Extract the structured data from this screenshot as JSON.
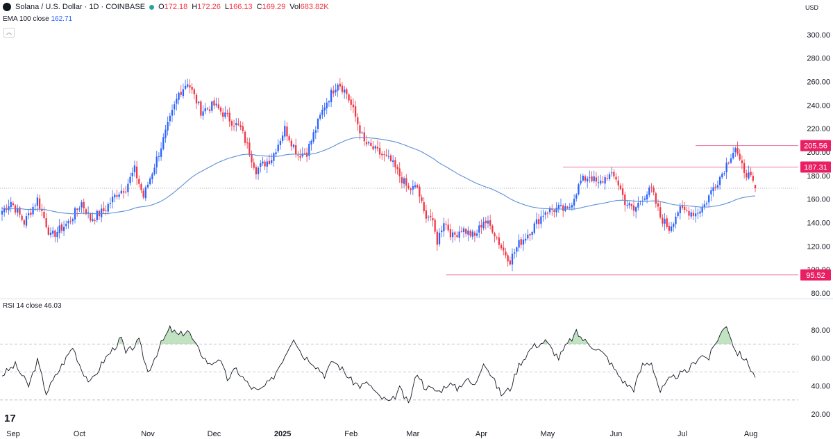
{
  "header": {
    "symbol": "Solana / U.S. Dollar · 1D · COINBASE",
    "open_label": "O",
    "open": "172.18",
    "high_label": "H",
    "high": "172.26",
    "low_label": "L",
    "low": "166.13",
    "close_label": "C",
    "close": "169.29",
    "volume_label": "Vol",
    "volume": "683.82K",
    "ema_label": "EMA 100 close",
    "ema_value": "162.71",
    "rsi_label": "RSI 14 close",
    "rsi_value": "46.03",
    "currency": "USD",
    "brand": "17"
  },
  "colors": {
    "up": "#2962ff",
    "down": "#f23645",
    "ema": "#5b8fd6",
    "level_line": "#e8739a",
    "level_badge": "#e91e63",
    "rsi": "#131722"
  },
  "chart_data": [
    {
      "type": "candlestick",
      "title": "Solana / U.S. Dollar · 1D · COINBASE",
      "ylim": [
        80,
        310
      ],
      "yticks": [
        80,
        100,
        120,
        140,
        160,
        180,
        200,
        220,
        240,
        260,
        280,
        300
      ],
      "ytick_labels": [
        "80.00",
        "100.00",
        "120.00",
        "140.00",
        "160.00",
        "180.00",
        "200.00",
        "220.00",
        "240.00",
        "260.00",
        "280.00",
        "300.00"
      ],
      "x_months": [
        "Sep",
        "Oct",
        "Nov",
        "Dec",
        "2025",
        "Feb",
        "Mar",
        "Apr",
        "May",
        "Jun",
        "Jul",
        "Aug"
      ],
      "x_month_day_index": [
        5,
        35,
        66,
        96,
        127,
        158,
        186,
        217,
        247,
        278,
        308,
        339
      ],
      "last_candle": {
        "open": 172.18,
        "high": 172.26,
        "low": 166.13,
        "close": 169.29
      },
      "close_keypoints": [
        [
          0,
          150
        ],
        [
          4,
          158
        ],
        [
          10,
          140
        ],
        [
          16,
          160
        ],
        [
          22,
          128
        ],
        [
          30,
          140
        ],
        [
          36,
          157
        ],
        [
          40,
          143
        ],
        [
          46,
          150
        ],
        [
          52,
          165
        ],
        [
          56,
          170
        ],
        [
          60,
          185
        ],
        [
          64,
          162
        ],
        [
          72,
          205
        ],
        [
          80,
          250
        ],
        [
          84,
          260
        ],
        [
          90,
          235
        ],
        [
          96,
          240
        ],
        [
          103,
          228
        ],
        [
          108,
          220
        ],
        [
          115,
          185
        ],
        [
          122,
          195
        ],
        [
          128,
          220
        ],
        [
          134,
          198
        ],
        [
          138,
          200
        ],
        [
          146,
          240
        ],
        [
          152,
          260
        ],
        [
          156,
          250
        ],
        [
          160,
          230
        ],
        [
          164,
          208
        ],
        [
          170,
          200
        ],
        [
          176,
          192
        ],
        [
          184,
          168
        ],
        [
          188,
          170
        ],
        [
          191,
          148
        ],
        [
          194,
          145
        ],
        [
          197,
          124
        ],
        [
          200,
          142
        ],
        [
          204,
          128
        ],
        [
          208,
          135
        ],
        [
          214,
          128
        ],
        [
          218,
          142
        ],
        [
          222,
          135
        ],
        [
          226,
          119
        ],
        [
          230,
          108
        ],
        [
          234,
          122
        ],
        [
          240,
          135
        ],
        [
          246,
          150
        ],
        [
          252,
          152
        ],
        [
          256,
          150
        ],
        [
          262,
          175
        ],
        [
          266,
          180
        ],
        [
          270,
          172
        ],
        [
          274,
          180
        ],
        [
          278,
          178
        ],
        [
          282,
          158
        ],
        [
          286,
          150
        ],
        [
          290,
          162
        ],
        [
          294,
          168
        ],
        [
          298,
          145
        ],
        [
          302,
          135
        ],
        [
          306,
          150
        ],
        [
          310,
          150
        ],
        [
          314,
          148
        ],
        [
          318,
          155
        ],
        [
          322,
          170
        ],
        [
          326,
          182
        ],
        [
          330,
          198
        ],
        [
          332,
          204
        ],
        [
          334,
          190
        ],
        [
          336,
          185
        ],
        [
          338,
          180
        ],
        [
          341,
          169.29
        ]
      ],
      "ema": {
        "name": "EMA 100 close",
        "last": 162.71
      },
      "levels": [
        {
          "value": 205.56,
          "label": "205.56",
          "from_day": 314
        },
        {
          "value": 187.31,
          "label": "187.31",
          "from_day": 254
        },
        {
          "value": 95.52,
          "label": "95.52",
          "from_day": 201
        }
      ],
      "last_price_dotted": 169.29
    },
    {
      "type": "line",
      "title": "RSI 14 close",
      "ylim": [
        15,
        90
      ],
      "yticks": [
        20,
        40,
        60,
        80
      ],
      "ytick_labels": [
        "20.00",
        "40.00",
        "60.00",
        "80.00"
      ],
      "bands": [
        30,
        50,
        70
      ],
      "last": 46.03,
      "value_keypoints": [
        [
          0,
          48
        ],
        [
          6,
          55
        ],
        [
          12,
          40
        ],
        [
          16,
          58
        ],
        [
          20,
          35
        ],
        [
          26,
          52
        ],
        [
          32,
          68
        ],
        [
          36,
          52
        ],
        [
          40,
          42
        ],
        [
          46,
          58
        ],
        [
          52,
          70
        ],
        [
          54,
          74
        ],
        [
          56,
          63
        ],
        [
          62,
          72
        ],
        [
          66,
          50
        ],
        [
          72,
          70
        ],
        [
          76,
          81
        ],
        [
          80,
          76
        ],
        [
          84,
          80
        ],
        [
          88,
          68
        ],
        [
          94,
          55
        ],
        [
          98,
          60
        ],
        [
          102,
          45
        ],
        [
          106,
          52
        ],
        [
          112,
          40
        ],
        [
          116,
          36
        ],
        [
          122,
          44
        ],
        [
          128,
          62
        ],
        [
          132,
          75
        ],
        [
          136,
          62
        ],
        [
          140,
          58
        ],
        [
          146,
          48
        ],
        [
          150,
          58
        ],
        [
          154,
          52
        ],
        [
          158,
          44
        ],
        [
          162,
          40
        ],
        [
          166,
          42
        ],
        [
          170,
          33
        ],
        [
          176,
          28
        ],
        [
          180,
          38
        ],
        [
          184,
          27
        ],
        [
          188,
          50
        ],
        [
          191,
          40
        ],
        [
          194,
          38
        ],
        [
          198,
          36
        ],
        [
          202,
          42
        ],
        [
          206,
          38
        ],
        [
          210,
          45
        ],
        [
          214,
          40
        ],
        [
          218,
          58
        ],
        [
          222,
          46
        ],
        [
          226,
          34
        ],
        [
          230,
          38
        ],
        [
          234,
          55
        ],
        [
          240,
          68
        ],
        [
          246,
          72
        ],
        [
          252,
          60
        ],
        [
          256,
          70
        ],
        [
          260,
          78
        ],
        [
          264,
          72
        ],
        [
          270,
          66
        ],
        [
          274,
          60
        ],
        [
          278,
          50
        ],
        [
          282,
          42
        ],
        [
          286,
          38
        ],
        [
          290,
          55
        ],
        [
          294,
          57
        ],
        [
          298,
          36
        ],
        [
          302,
          44
        ],
        [
          306,
          48
        ],
        [
          310,
          50
        ],
        [
          316,
          62
        ],
        [
          320,
          60
        ],
        [
          324,
          74
        ],
        [
          328,
          84
        ],
        [
          332,
          65
        ],
        [
          336,
          60
        ],
        [
          340,
          50
        ],
        [
          341,
          46.03
        ]
      ]
    }
  ]
}
